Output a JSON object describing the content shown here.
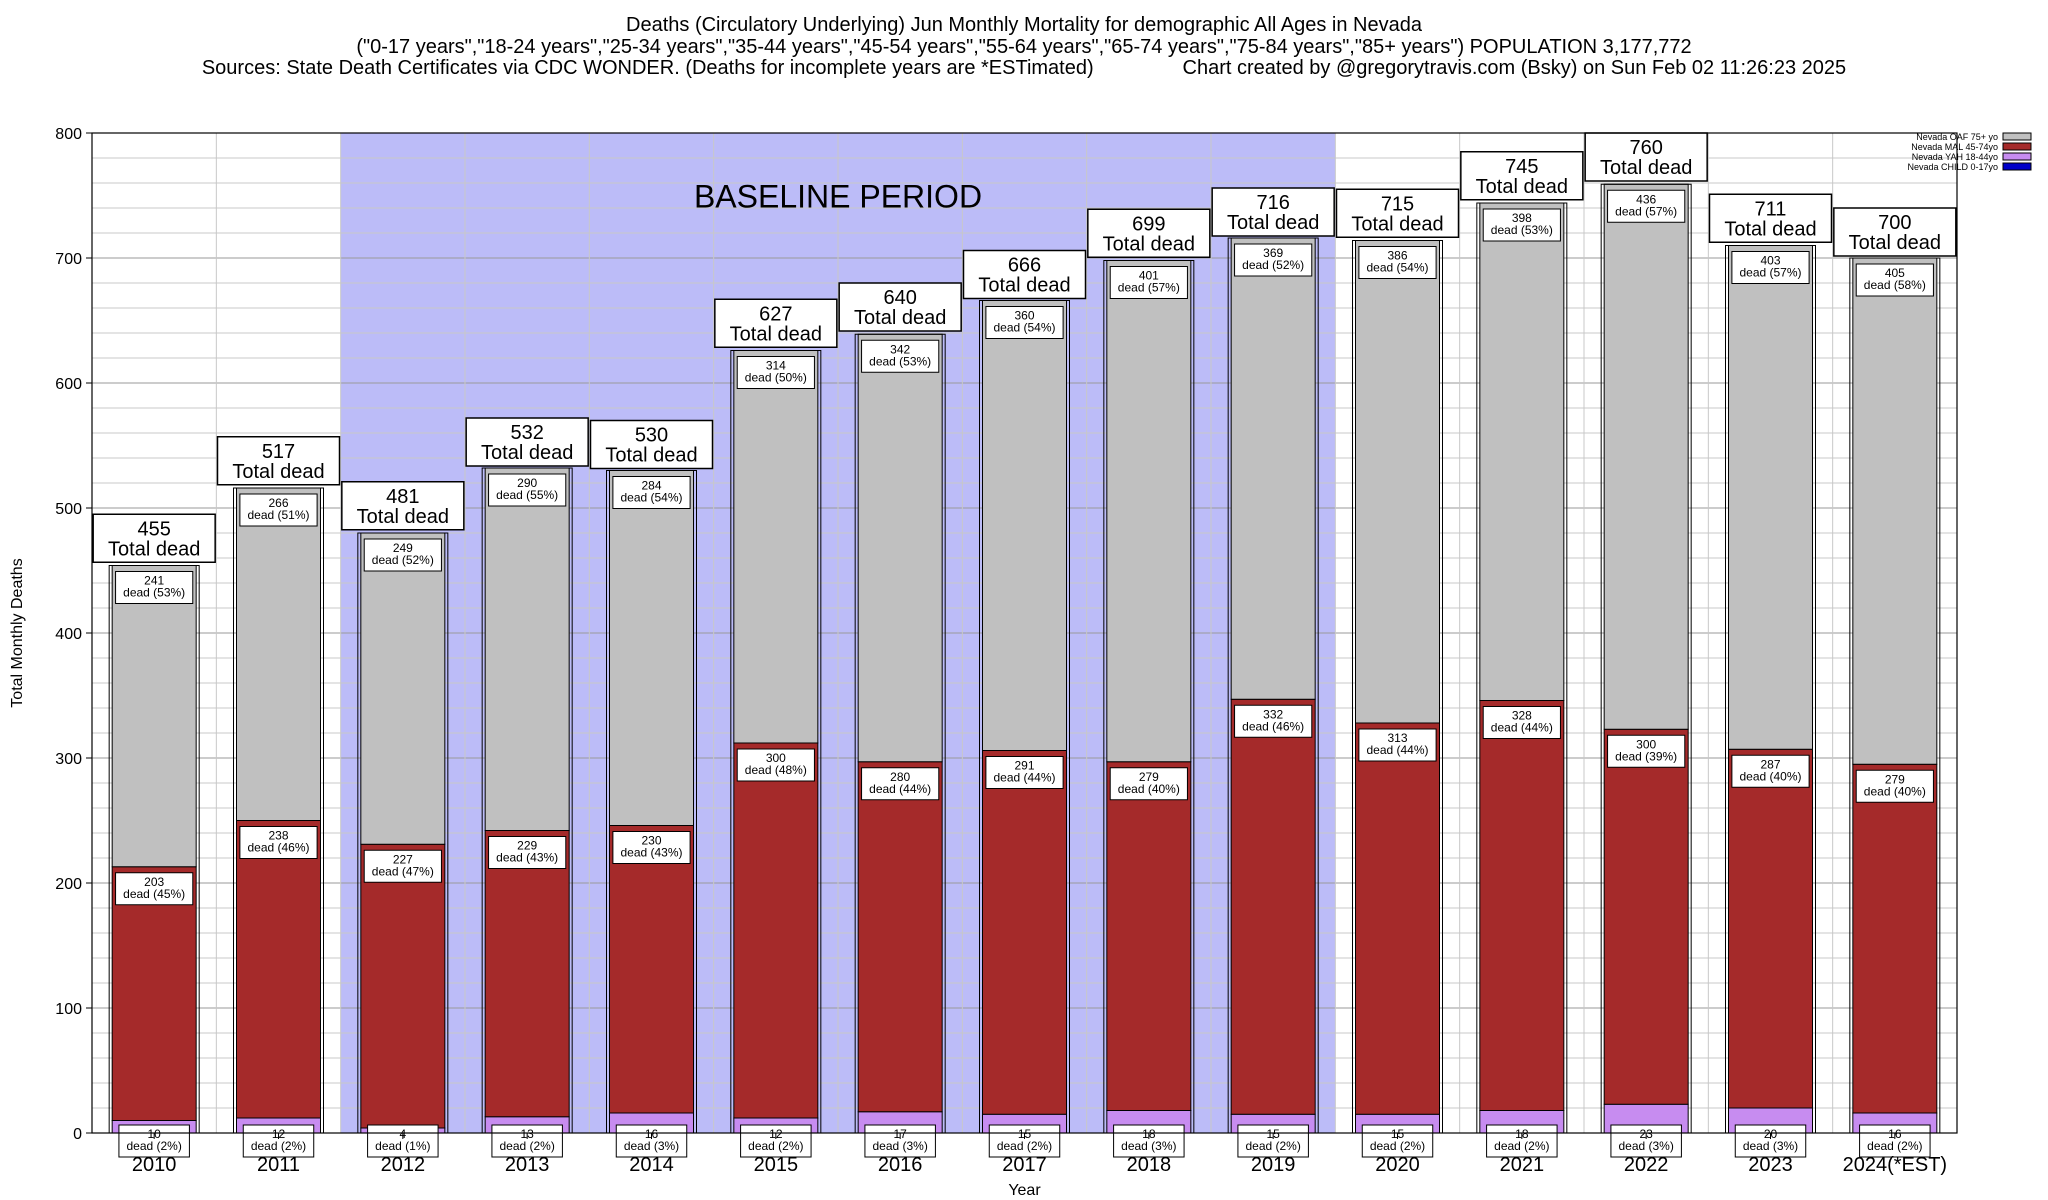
{
  "header": {
    "line1": "Deaths (Circulatory Underlying) Jun Monthly Mortality for demographic All Ages in Nevada",
    "line2": "(\"0-17 years\",\"18-24 years\",\"25-34 years\",\"35-44 years\",\"45-54 years\",\"55-64 years\",\"65-74 years\",\"75-84 years\",\"85+ years\") POPULATION 3,177,772",
    "line3": "Sources: State Death Certificates via CDC WONDER. (Deaths for incomplete years are *ESTimated)                Chart created by @gregorytravis.com (Bsky) on Sun Feb 02 11:26:23 2025"
  },
  "colors": {
    "oaf": "#c0c0c0",
    "mal": "#a52a2a",
    "yah": "#c78cf0",
    "child": "#0000c8",
    "baseline": "#bcbcf8"
  },
  "chart_data": {
    "type": "bar",
    "stacked": true,
    "title": "Deaths (Circulatory Underlying) Jun Monthly Mortality for demographic All Ages in Nevada",
    "xlabel": "Year",
    "ylabel": "Total Monthly Deaths",
    "ylim": [
      0,
      800
    ],
    "yticks": [
      0,
      100,
      200,
      300,
      400,
      500,
      600,
      700,
      800
    ],
    "grid": true,
    "legend_position": "top-right",
    "baseline_label": "BASELINE PERIOD",
    "baseline_range": [
      "2012",
      "2019"
    ],
    "total_label": "Total dead",
    "categories": [
      "2010",
      "2011",
      "2012",
      "2013",
      "2014",
      "2015",
      "2016",
      "2017",
      "2018",
      "2019",
      "2020",
      "2021",
      "2022",
      "2023",
      "2024(*EST)"
    ],
    "totals": [
      455,
      517,
      481,
      532,
      530,
      627,
      640,
      666,
      699,
      716,
      715,
      745,
      760,
      711,
      700
    ],
    "series": [
      {
        "name": "Nevada CHILD 0-17yo",
        "values": [
          0,
          0,
          0,
          0,
          0,
          0,
          0,
          0,
          0,
          0,
          0,
          0,
          0,
          0,
          0
        ]
      },
      {
        "name": "Nevada YAH 18-44yo",
        "values": [
          10,
          12,
          4,
          13,
          16,
          12,
          17,
          15,
          18,
          15,
          15,
          18,
          23,
          20,
          16
        ],
        "labels": [
          "dead (2%)",
          "dead (2%)",
          "dead (1%)",
          "dead (2%)",
          "dead (3%)",
          "dead (2%)",
          "dead (3%)",
          "dead (2%)",
          "dead (3%)",
          "dead (2%)",
          "dead (2%)",
          "dead (2%)",
          "dead (3%)",
          "dead (3%)",
          "dead (2%)"
        ]
      },
      {
        "name": "Nevada MAL 45-74yo",
        "values": [
          203,
          238,
          227,
          229,
          230,
          300,
          280,
          291,
          279,
          332,
          313,
          328,
          300,
          287,
          279
        ],
        "labels": [
          "dead (45%)",
          "dead (46%)",
          "dead (47%)",
          "dead (43%)",
          "dead (43%)",
          "dead (48%)",
          "dead (44%)",
          "dead (44%)",
          "dead (40%)",
          "dead (46%)",
          "dead (44%)",
          "dead (44%)",
          "dead (39%)",
          "dead (40%)",
          "dead (40%)"
        ]
      },
      {
        "name": "Nevada OAF 75+ yo",
        "values": [
          241,
          266,
          249,
          290,
          284,
          314,
          342,
          360,
          401,
          369,
          386,
          398,
          436,
          403,
          405
        ],
        "labels": [
          "dead (53%)",
          "dead (51%)",
          "dead (52%)",
          "dead (55%)",
          "dead (54%)",
          "dead (50%)",
          "dead (53%)",
          "dead (54%)",
          "dead (57%)",
          "dead (52%)",
          "dead (54%)",
          "dead (53%)",
          "dead (57%)",
          "dead (57%)",
          "dead (58%)"
        ]
      }
    ],
    "legend": [
      "Nevada OAF 75+ yo",
      "Nevada MAL 45-74yo",
      "Nevada YAH 18-44yo",
      "Nevada CHILD 0-17yo"
    ]
  }
}
